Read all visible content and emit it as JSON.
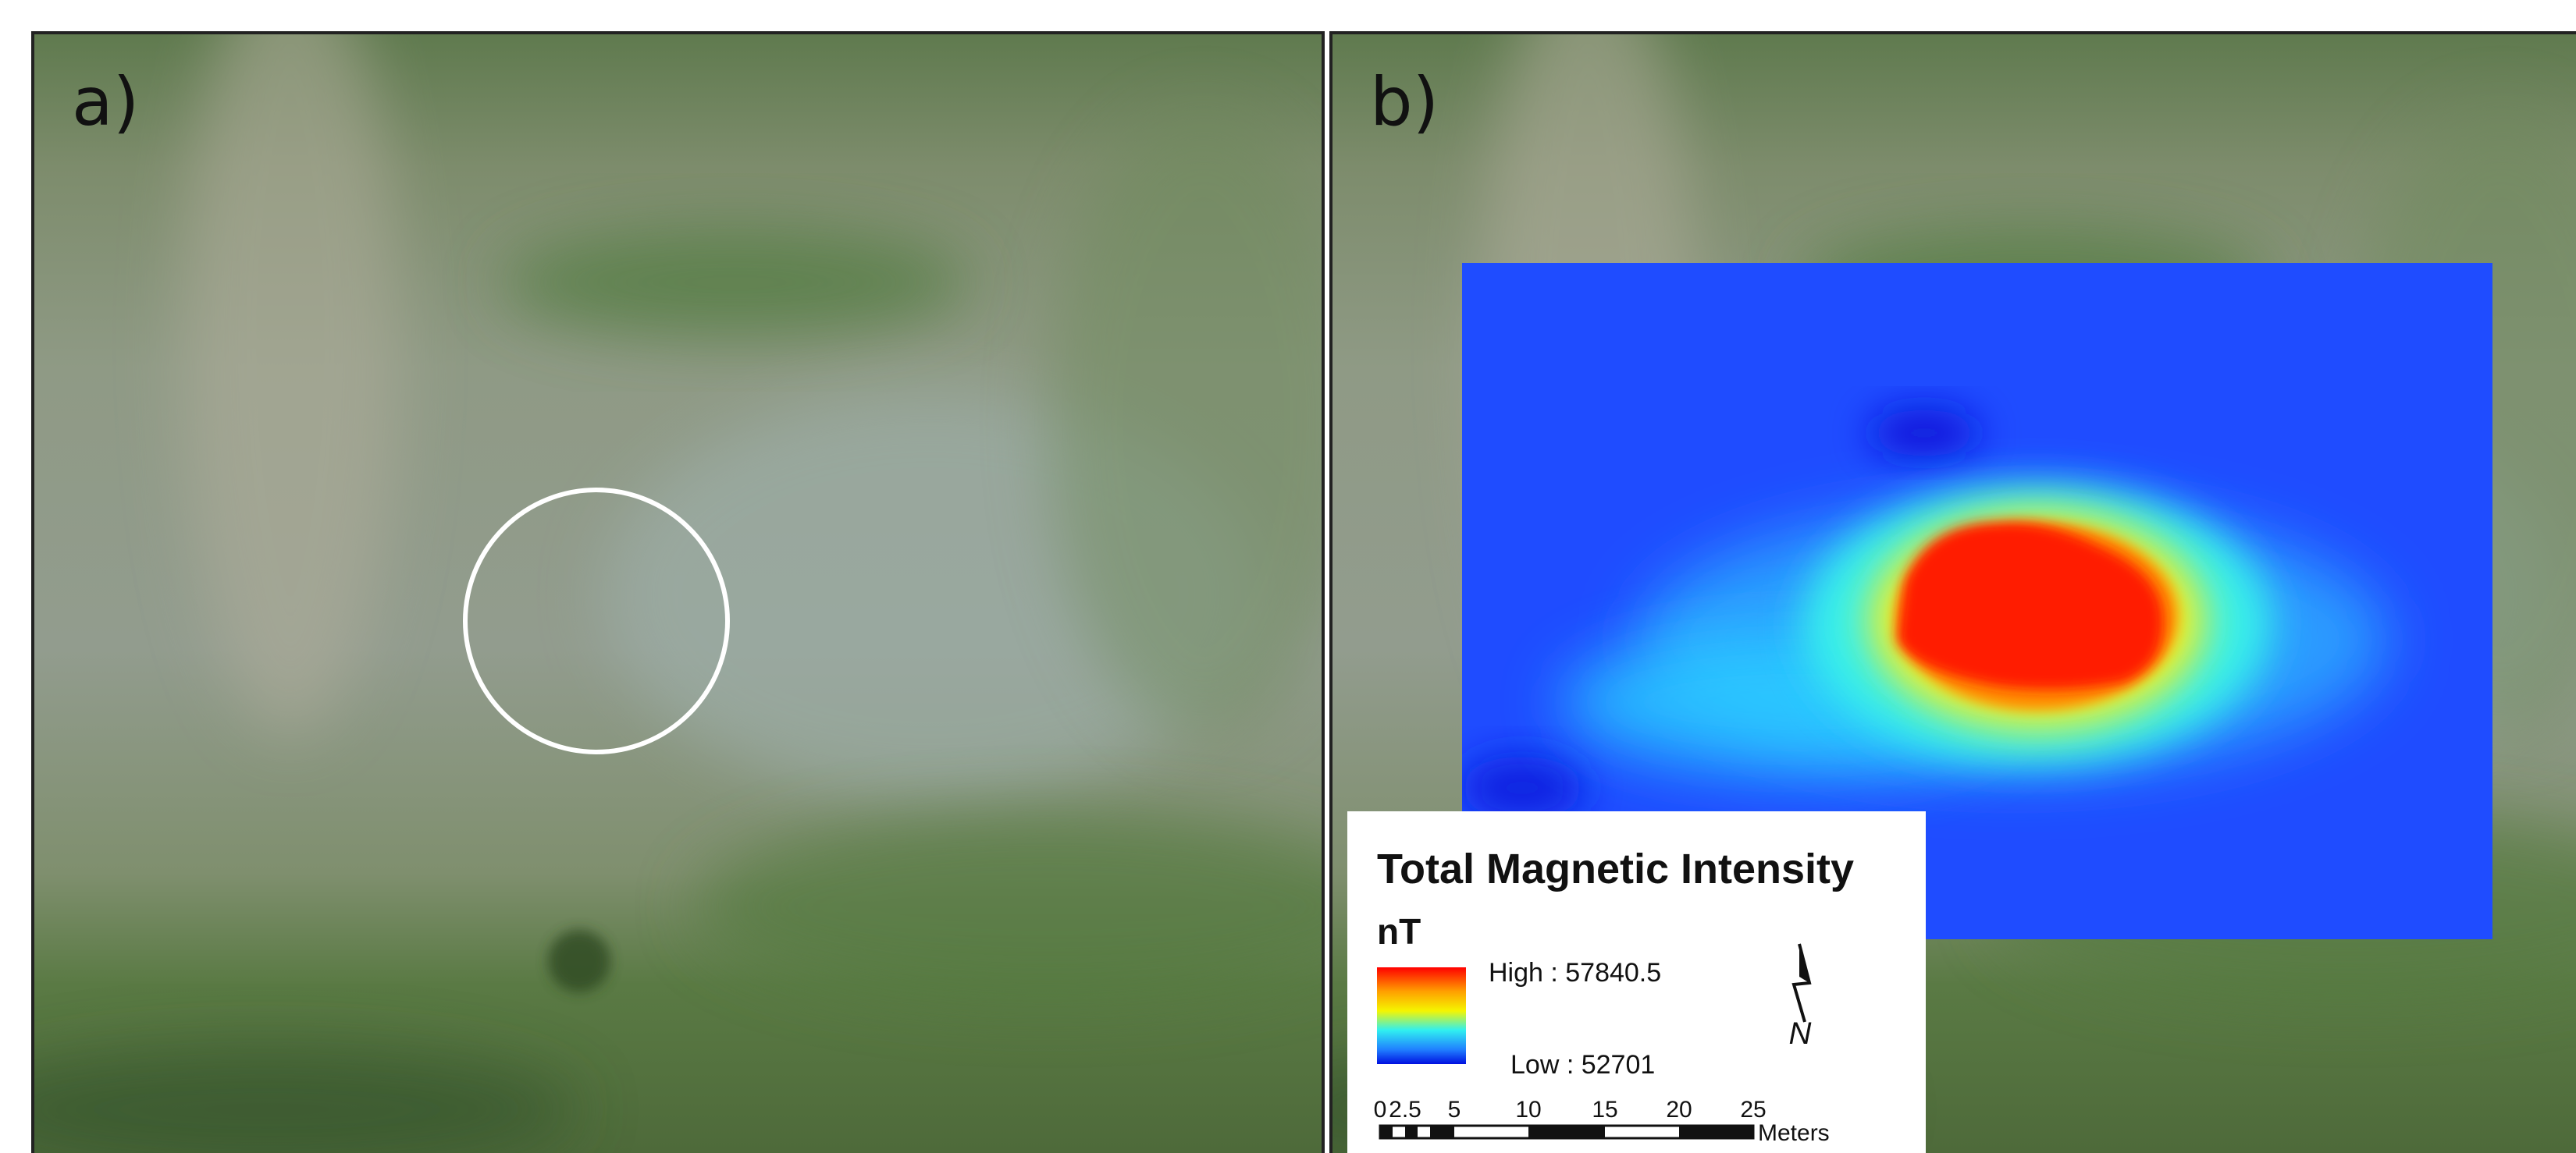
{
  "panels": [
    {
      "label": "a)"
    },
    {
      "label": "b)"
    }
  ],
  "legend": {
    "title": "Total Magnetic Intensity",
    "unit": "nT",
    "high": "High : 57840.5",
    "low": "Low : 52701"
  },
  "north_arrow": "N",
  "scale_bar": {
    "ticks": [
      "0",
      "2.5",
      "5",
      "10",
      "15",
      "20",
      "25"
    ],
    "unit": "Meters"
  }
}
